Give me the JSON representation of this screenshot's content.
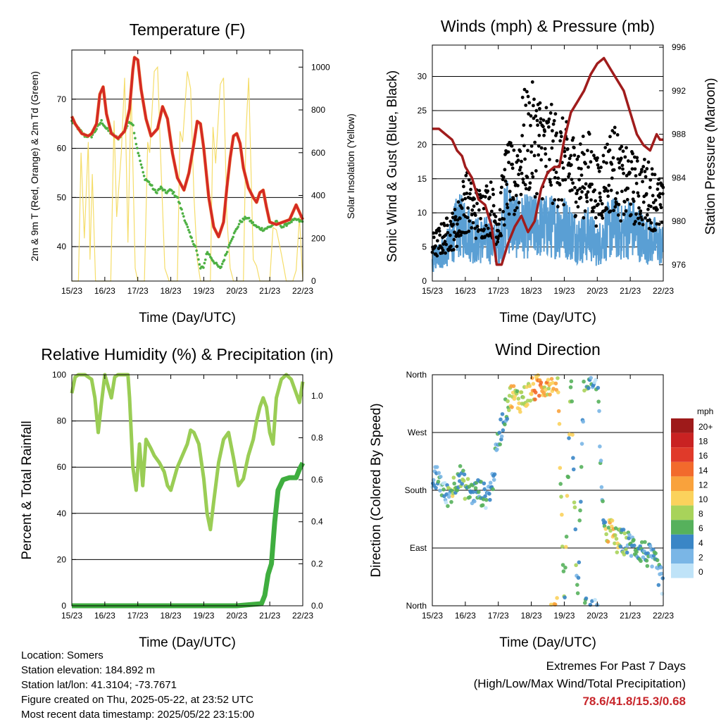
{
  "footer": {
    "location": "Location: Somers",
    "elevation": "Station elevation: 184.892 m",
    "latlon": "Station lat/lon: 41.3104; -73.7671",
    "created": "Figure created on Thu, 2025-05-22, at 23:52 UTC",
    "recent": "Most recent data timestamp: 2025/05/22 23:15:00",
    "extremes_title": "Extremes For Past 7 Days",
    "extremes_sub": "(High/Low/Max Wind/Total Precipitation)",
    "extremes_values": "78.6/41.8/15.3/0.68"
  },
  "colors": {
    "temp_red": "#d42a24",
    "temp_orange": "#f08a3a",
    "dewpoint_green": "#4db043",
    "solar_yellow": "#f5dd6a",
    "gust_black": "#000000",
    "wind_blue": "#5a9fd4",
    "pressure_maroon": "#a01c1c",
    "rh_green": "#9acd55",
    "rain_green": "#3fae3f"
  },
  "chart_data": [
    {
      "id": "temperature",
      "type": "line",
      "title": "Temperature (F)",
      "xlabel": "Time (Day/UTC)",
      "ylabel": "2m & 9m T (Red, Orange) & 2m Td (Green)",
      "ylabel_right": "Solar Insolation (Yellow)",
      "x_ticks": [
        "15/23",
        "16/23",
        "17/23",
        "18/23",
        "19/23",
        "20/23",
        "21/23",
        "22/23"
      ],
      "xlim": [
        0,
        7
      ],
      "ylim": [
        33,
        80
      ],
      "y_ticks": [
        40,
        50,
        60,
        70
      ],
      "y2lim": [
        0,
        1080
      ],
      "y2_ticks": [
        0,
        200,
        400,
        600,
        800,
        1000
      ],
      "grid": true,
      "series": [
        {
          "key": "temp",
          "x": [
            0,
            0.1,
            0.3,
            0.5,
            0.6,
            0.75,
            0.85,
            0.95,
            1.05,
            1.2,
            1.4,
            1.6,
            1.75,
            1.85,
            1.9,
            2.0,
            2.1,
            2.25,
            2.4,
            2.6,
            2.75,
            2.9,
            3.05,
            3.2,
            3.4,
            3.55,
            3.7,
            3.8,
            3.9,
            4.0,
            4.15,
            4.3,
            4.45,
            4.6,
            4.7,
            4.8,
            4.9,
            5.0,
            5.1,
            5.2,
            5.35,
            5.5,
            5.6,
            5.7,
            5.8,
            5.9,
            6.0,
            6.2,
            6.4,
            6.6,
            6.8,
            6.9,
            7.0
          ],
          "values": [
            66.5,
            65,
            63,
            62.5,
            63,
            65,
            71,
            72.5,
            67,
            63,
            62,
            63.5,
            68,
            76,
            78.5,
            78,
            72,
            66,
            62.5,
            64,
            68.5,
            66,
            59,
            54,
            51.5,
            55,
            61,
            65.5,
            65,
            60,
            50,
            44,
            42,
            45,
            52,
            58,
            62.5,
            63,
            61,
            56,
            52,
            50,
            49,
            51,
            51.5,
            48,
            45,
            44.5,
            45,
            45.5,
            48.5,
            47,
            45.5
          ]
        },
        {
          "key": "dewpoint",
          "x": [
            0,
            0.2,
            0.4,
            0.6,
            0.75,
            0.9,
            1.05,
            1.2,
            1.4,
            1.6,
            1.75,
            1.85,
            1.95,
            2.05,
            2.2,
            2.35,
            2.55,
            2.7,
            2.85,
            3.0,
            3.2,
            3.4,
            3.6,
            3.75,
            3.9,
            4.0,
            4.1,
            4.3,
            4.5,
            4.65,
            4.8,
            4.95,
            5.1,
            5.3,
            5.45,
            5.6,
            5.8,
            6.0,
            6.2,
            6.4,
            6.6,
            6.8,
            7.0
          ],
          "values": [
            65.5,
            64,
            62.5,
            62.5,
            64,
            65.5,
            64,
            63,
            62,
            63.5,
            65.5,
            65,
            61,
            58,
            54,
            53,
            51,
            52,
            51,
            51.5,
            50,
            46,
            42,
            40,
            35.5,
            36,
            39,
            37,
            35.5,
            38,
            41,
            43,
            45,
            46,
            45,
            44,
            43.5,
            44,
            45,
            44,
            45,
            45.5,
            45
          ]
        },
        {
          "key": "solar",
          "x": [
            0,
            0.1,
            0.2,
            0.28,
            0.38,
            0.5,
            0.55,
            0.62,
            0.72,
            0.85,
            1.0,
            1.1,
            1.18,
            1.28,
            1.36,
            1.5,
            1.6,
            1.7,
            1.8,
            1.92,
            2.0,
            2.1,
            2.2,
            2.3,
            2.36,
            2.5,
            2.6,
            2.7,
            2.82,
            2.95,
            3.0,
            3.1,
            3.2,
            3.28,
            3.36,
            3.5,
            3.6,
            3.7,
            3.8,
            3.9,
            4.0,
            4.1,
            4.2,
            4.28,
            4.36,
            4.5,
            4.6,
            4.7,
            4.8,
            4.9,
            5.0,
            5.1,
            5.2,
            5.28,
            5.36,
            5.5,
            5.6,
            5.7,
            5.8,
            5.9,
            6.0,
            6.1,
            6.2,
            6.28,
            6.36,
            6.5,
            6.6,
            6.7,
            6.8,
            6.9,
            7.0
          ],
          "values": [
            0,
            0,
            0,
            600,
            200,
            650,
            100,
            500,
            0,
            0,
            0,
            0,
            0,
            750,
            300,
            600,
            950,
            180,
            900,
            60,
            0,
            0,
            0,
            650,
            600,
            980,
            1000,
            550,
            60,
            0,
            0,
            0,
            0,
            700,
            650,
            980,
            900,
            400,
            100,
            0,
            0,
            0,
            0,
            720,
            550,
            920,
            950,
            300,
            60,
            0,
            0,
            0,
            0,
            700,
            950,
            100,
            70,
            0,
            0,
            0,
            0,
            250,
            240,
            180,
            120,
            0,
            0,
            0,
            50,
            300,
            0
          ]
        }
      ]
    },
    {
      "id": "winds",
      "type": "scatter",
      "title": "Winds (mph) & Pressure (mb)",
      "xlabel": "Time (Day/UTC)",
      "ylabel": "Sonic Wind & Gust (Blue, Black)",
      "ylabel_right": "Station Pressure (Maroon)",
      "x_ticks": [
        "15/23",
        "16/23",
        "17/23",
        "18/23",
        "19/23",
        "20/23",
        "21/23",
        "22/23"
      ],
      "xlim": [
        0,
        7
      ],
      "ylim": [
        0,
        34.6
      ],
      "y_ticks": [
        0,
        5,
        10,
        15,
        20,
        25,
        30
      ],
      "y2lim": [
        974.5,
        996.2
      ],
      "y2_ticks": [
        976,
        980,
        984,
        988,
        992,
        996
      ],
      "grid": true,
      "series": [
        {
          "key": "gust",
          "x": [
            0,
            0.25,
            0.5,
            0.75,
            1.0,
            1.25,
            1.5,
            1.75,
            2.0,
            2.25,
            2.5,
            2.75,
            3.0,
            3.25,
            3.5,
            3.75,
            4.0,
            4.25,
            4.5,
            4.75,
            5.0,
            5.25,
            5.5,
            5.75,
            6.0,
            6.25,
            6.5,
            6.75,
            7.0
          ],
          "values": [
            5,
            6,
            7,
            8,
            12,
            10,
            10,
            11,
            8,
            15,
            14,
            20,
            21,
            20,
            19,
            18,
            17,
            16,
            15,
            16,
            13,
            15,
            17,
            14,
            14,
            13,
            13,
            12,
            10
          ]
        },
        {
          "key": "wind",
          "x": [
            0,
            0.25,
            0.5,
            0.75,
            1.0,
            1.25,
            1.5,
            1.75,
            2.0,
            2.25,
            2.5,
            2.75,
            3.0,
            3.25,
            3.5,
            3.75,
            4.0,
            4.25,
            4.5,
            4.75,
            5.0,
            5.25,
            5.5,
            5.75,
            6.0,
            6.25,
            6.5,
            6.75,
            7.0
          ],
          "values": [
            3,
            4,
            5,
            8,
            8,
            6,
            6,
            6,
            5,
            10,
            8,
            8,
            8,
            8,
            8,
            8,
            8,
            7,
            6,
            7,
            5,
            7,
            8,
            7,
            8,
            7,
            6,
            6,
            5
          ]
        },
        {
          "key": "pressure",
          "x": [
            0,
            0.2,
            0.4,
            0.6,
            0.75,
            0.9,
            1.0,
            1.2,
            1.4,
            1.6,
            1.8,
            1.95,
            2.1,
            2.3,
            2.5,
            2.7,
            2.9,
            3.1,
            3.3,
            3.5,
            3.7,
            3.85,
            4.0,
            4.2,
            4.4,
            4.6,
            4.8,
            5.0,
            5.2,
            5.4,
            5.6,
            5.8,
            6.0,
            6.2,
            6.4,
            6.6,
            6.8,
            6.9,
            7.0
          ],
          "values": [
            988.5,
            988.5,
            988,
            987.5,
            986.5,
            986,
            985,
            984,
            982,
            981.5,
            979.5,
            976,
            976,
            978,
            979.5,
            980.5,
            979,
            980,
            983,
            984.5,
            985,
            985,
            987.5,
            990,
            991,
            992,
            993.5,
            994.5,
            995,
            994,
            993,
            992,
            990,
            988,
            987,
            986.5,
            988,
            987.5,
            987.5
          ]
        }
      ]
    },
    {
      "id": "humidity",
      "type": "line",
      "title": "Relative Humidity (%) & Precipitation (in)",
      "xlabel": "Time (Day/UTC)",
      "ylabel": "Percent & Total Rainfall",
      "x_ticks": [
        "15/23",
        "16/23",
        "17/23",
        "18/23",
        "19/23",
        "20/23",
        "21/23",
        "22/23"
      ],
      "xlim": [
        0,
        7
      ],
      "ylim": [
        0,
        100
      ],
      "y_ticks": [
        0,
        20,
        40,
        60,
        80,
        100
      ],
      "y2lim": [
        0,
        1.1
      ],
      "y2_ticks": [
        0.0,
        0.2,
        0.4,
        0.6,
        0.8,
        1.0
      ],
      "grid": true,
      "series": [
        {
          "key": "rh",
          "x": [
            0,
            0.1,
            0.2,
            0.4,
            0.6,
            0.7,
            0.8,
            0.9,
            1.0,
            1.1,
            1.2,
            1.3,
            1.4,
            1.5,
            1.6,
            1.7,
            1.75,
            1.85,
            1.95,
            2.05,
            2.15,
            2.25,
            2.4,
            2.5,
            2.65,
            2.8,
            2.9,
            3.0,
            3.1,
            3.2,
            3.35,
            3.5,
            3.6,
            3.7,
            3.85,
            3.95,
            4.0,
            4.1,
            4.2,
            4.3,
            4.45,
            4.6,
            4.75,
            4.9,
            5.05,
            5.2,
            5.35,
            5.5,
            5.6,
            5.7,
            5.8,
            5.9,
            6.0,
            6.1,
            6.2,
            6.35,
            6.5,
            6.65,
            6.8,
            6.9,
            7.0
          ],
          "values": [
            92,
            99,
            100,
            100,
            98,
            90,
            75,
            88,
            100,
            95,
            90,
            99,
            100,
            100,
            100,
            100,
            90,
            60,
            50,
            70,
            52,
            72,
            68,
            65,
            62,
            58,
            52,
            50,
            55,
            60,
            65,
            70,
            76,
            75,
            70,
            60,
            55,
            40,
            33,
            45,
            62,
            72,
            75,
            64,
            52,
            55,
            65,
            72,
            80,
            86,
            90,
            86,
            75,
            70,
            90,
            98,
            100,
            98,
            92,
            88,
            97
          ]
        },
        {
          "key": "rain",
          "x": [
            0,
            1,
            2,
            3,
            4,
            5,
            5.75,
            5.85,
            5.95,
            6.05,
            6.15,
            6.25,
            6.4,
            6.6,
            6.8,
            6.9,
            7.0
          ],
          "values": [
            0,
            0,
            0,
            0,
            0,
            0,
            0.01,
            0.05,
            0.15,
            0.2,
            0.4,
            0.55,
            0.6,
            0.61,
            0.61,
            0.65,
            0.68
          ]
        }
      ]
    },
    {
      "id": "direction",
      "type": "scatter",
      "title": "Wind Direction",
      "xlabel": "Time (Day/UTC)",
      "ylabel": "Direction (Colored By Speed)",
      "x_ticks": [
        "15/23",
        "16/23",
        "17/23",
        "18/23",
        "19/23",
        "20/23",
        "21/23",
        "22/23"
      ],
      "xlim": [
        0,
        7
      ],
      "y_ticks": [
        "North",
        "East",
        "South",
        "West",
        "North"
      ],
      "grid": true,
      "legend_title": "mph",
      "legend_labels": [
        "20+",
        "18",
        "16",
        "14",
        "12",
        "10",
        "8",
        "6",
        "4",
        "2",
        "0"
      ],
      "legend_colors": [
        "#9e1a1a",
        "#c92222",
        "#e03a2a",
        "#f26a2c",
        "#f9a23c",
        "#fbd25c",
        "#a8d35a",
        "#56b15c",
        "#3a86c6",
        "#7ab6e6",
        "#bfe3f8"
      ],
      "series": [
        {
          "key": "dir_speed",
          "x": [
            0,
            0.2,
            0.4,
            0.6,
            0.8,
            1.0,
            1.2,
            1.4,
            1.6,
            1.8,
            2.0,
            2.2,
            2.4,
            2.6,
            2.8,
            3.0,
            3.2,
            3.4,
            3.6,
            3.8,
            4.0,
            4.2,
            4.4,
            4.6,
            4.8,
            5.0,
            5.2,
            5.4,
            5.6,
            5.8,
            6.0,
            6.2,
            6.4,
            6.6,
            6.8,
            7.0
          ],
          "values": [
            195,
            200,
            170,
            180,
            205,
            185,
            175,
            180,
            170,
            185,
            260,
            300,
            330,
            320,
            325,
            335,
            340,
            345,
            350,
            355,
            5,
            358,
            2,
            355,
            350,
            355,
            110,
            120,
            100,
            100,
            95,
            90,
            85,
            75,
            60,
            30
          ]
        },
        {
          "key": "speed",
          "values": [
            3,
            4,
            2,
            8,
            5,
            6,
            4,
            5,
            3,
            4,
            4,
            3,
            10,
            8,
            10,
            10,
            12,
            11,
            10,
            10,
            6,
            8,
            4,
            5,
            4,
            3,
            6,
            10,
            8,
            6,
            4,
            4,
            4,
            4,
            4,
            3
          ]
        }
      ]
    }
  ]
}
